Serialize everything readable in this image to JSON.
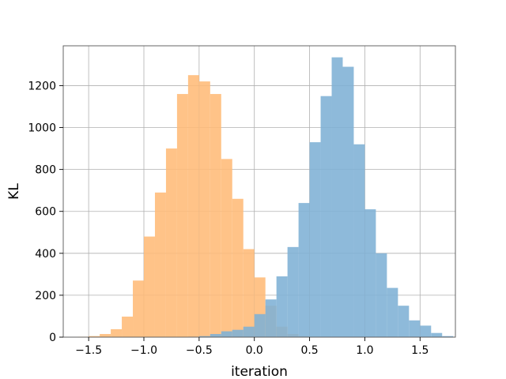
{
  "chart_data": {
    "type": "histogram",
    "xlabel": "iteration",
    "ylabel": "KL",
    "xlim": [
      -1.73,
      1.82
    ],
    "ylim": [
      0,
      1390
    ],
    "grid": true,
    "xticks": [
      -1.5,
      -1.0,
      -0.5,
      0.0,
      0.5,
      1.0,
      1.5
    ],
    "xtick_labels": [
      "−1.5",
      "−1.0",
      "−0.5",
      "0.0",
      "0.5",
      "1.0",
      "1.5"
    ],
    "yticks": [
      0,
      200,
      400,
      600,
      800,
      1000,
      1200
    ],
    "ytick_labels": [
      "0",
      "200",
      "400",
      "600",
      "800",
      "1000",
      "1200"
    ],
    "series": [
      {
        "color": "#ffbb78",
        "bin_start": -1.6,
        "bin_width": 0.1,
        "values": [
          2,
          5,
          15,
          38,
          98,
          270,
          480,
          690,
          900,
          1160,
          1250,
          1220,
          1160,
          850,
          660,
          420,
          285,
          150,
          50,
          15,
          5,
          2
        ]
      },
      {
        "color": "#7eb0d5",
        "bin_start": -0.6,
        "bin_width": 0.1,
        "values": [
          2,
          5,
          15,
          28,
          35,
          50,
          110,
          180,
          290,
          430,
          640,
          930,
          1150,
          1335,
          1290,
          920,
          610,
          400,
          235,
          150,
          80,
          55,
          20,
          5
        ]
      }
    ]
  }
}
